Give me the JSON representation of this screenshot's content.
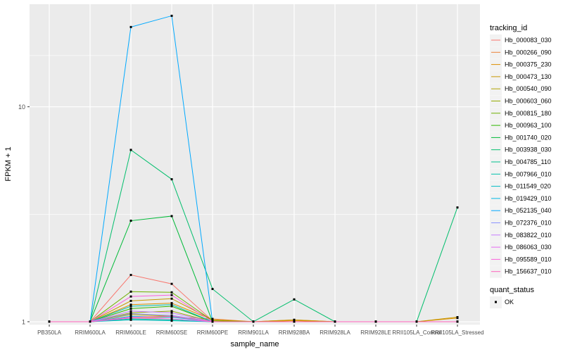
{
  "chart_data": {
    "type": "line",
    "xlabel": "sample_name",
    "ylabel": "FPKM + 1",
    "y_scale": "log10",
    "ylim": [
      0.97,
      30
    ],
    "grid": true,
    "legend_placement": "right",
    "categories": [
      "PB350LA",
      "RRIM600LA",
      "RRIM600LE",
      "RRIM600SE",
      "RRIM600PE",
      "RRIM901LA",
      "RRIM928BA",
      "RRIM928LA",
      "RRIM928LE",
      "RRII105LA_Control",
      "RRII105LA_Stressed"
    ],
    "y_ticks": [
      1,
      10
    ],
    "y_tick_labels": [
      "1",
      "10"
    ],
    "legend_title": "tracking_id",
    "series": [
      {
        "name": "Hb_000083_030",
        "color": "#F8766D",
        "values": [
          1,
          1,
          1.65,
          1.5,
          1.01,
          1,
          1,
          1,
          1,
          1,
          1
        ]
      },
      {
        "name": "Hb_000266_090",
        "color": "#EC8239",
        "values": [
          1,
          1,
          1.04,
          1.05,
          1.03,
          1,
          1.02,
          1,
          1,
          1,
          1
        ]
      },
      {
        "name": "Hb_000375_230",
        "color": "#DB8E00",
        "values": [
          1,
          1,
          1.2,
          1.22,
          1.02,
          1,
          1.01,
          1,
          1,
          1,
          1.04
        ]
      },
      {
        "name": "Hb_000473_130",
        "color": "#C79800",
        "values": [
          1,
          1,
          1.25,
          1.28,
          1.02,
          1,
          1.02,
          1,
          1,
          1,
          1.05
        ]
      },
      {
        "name": "Hb_000540_090",
        "color": "#AFA100",
        "values": [
          1,
          1,
          1.08,
          1.06,
          1,
          1,
          1,
          1,
          1,
          1,
          1
        ]
      },
      {
        "name": "Hb_000603_060",
        "color": "#93AA00",
        "values": [
          1,
          1,
          1.1,
          1.12,
          1,
          1,
          1,
          1,
          1,
          1,
          1
        ]
      },
      {
        "name": "Hb_000815_180",
        "color": "#6FB100",
        "values": [
          1,
          1,
          1.38,
          1.37,
          1.01,
          1,
          1,
          1,
          1,
          1,
          1
        ]
      },
      {
        "name": "Hb_000963_100",
        "color": "#2FB600",
        "values": [
          1,
          1,
          1.15,
          1.18,
          1,
          1,
          1,
          1,
          1,
          1,
          1
        ]
      },
      {
        "name": "Hb_001740_020",
        "color": "#00BA38",
        "values": [
          1,
          1,
          2.95,
          3.1,
          1,
          1,
          1,
          1,
          1,
          1,
          1
        ]
      },
      {
        "name": "Hb_003938_030",
        "color": "#00BE6C",
        "values": [
          1,
          1,
          6.3,
          4.6,
          1.42,
          1,
          1.27,
          1,
          1,
          1,
          3.4
        ]
      },
      {
        "name": "Hb_004785_110",
        "color": "#00C08E",
        "values": [
          1,
          1,
          1.03,
          1.02,
          1,
          1,
          1,
          1,
          1,
          1,
          1
        ]
      },
      {
        "name": "Hb_007966_010",
        "color": "#00C1AB",
        "values": [
          1,
          1,
          1.18,
          1.2,
          1,
          1,
          1,
          1,
          1,
          1,
          1
        ]
      },
      {
        "name": "Hb_011549_020",
        "color": "#00BDC4",
        "values": [
          1,
          1,
          1.02,
          1.01,
          1,
          1,
          1,
          1,
          1,
          1,
          1
        ]
      },
      {
        "name": "Hb_019429_010",
        "color": "#00B8E5",
        "values": [
          1,
          1,
          1.06,
          1.05,
          1,
          1,
          1,
          1,
          1,
          1,
          1
        ]
      },
      {
        "name": "Hb_052135_040",
        "color": "#00A9FF",
        "values": [
          1,
          1,
          23.5,
          26.5,
          1,
          1,
          1,
          1,
          1,
          1,
          1
        ]
      },
      {
        "name": "Hb_072376_010",
        "color": "#8B93FF",
        "values": [
          1,
          1,
          1.09,
          1.07,
          1,
          1,
          1,
          1,
          1,
          1,
          1
        ]
      },
      {
        "name": "Hb_083822_010",
        "color": "#C77CFF",
        "values": [
          1,
          1,
          1.12,
          1.1,
          1,
          1,
          1,
          1,
          1,
          1,
          1
        ]
      },
      {
        "name": "Hb_086063_030",
        "color": "#E76BF3",
        "values": [
          1,
          1,
          1.04,
          1.03,
          1,
          1,
          1,
          1,
          1,
          1,
          1
        ]
      },
      {
        "name": "Hb_095589_010",
        "color": "#FA62DB",
        "values": [
          1,
          1,
          1.31,
          1.33,
          1,
          1,
          1,
          1,
          1,
          1,
          1
        ]
      },
      {
        "name": "Hb_156637_010",
        "color": "#FF62BC",
        "values": [
          1,
          1,
          1.05,
          1.06,
          1,
          1,
          1,
          1,
          1,
          1,
          1
        ]
      }
    ],
    "legend2_title": "quant_status",
    "legend2_items": [
      "OK"
    ],
    "point_color": "#000000",
    "panel_color": "#EBEBEB",
    "grid_color": "#FFFFFF"
  }
}
